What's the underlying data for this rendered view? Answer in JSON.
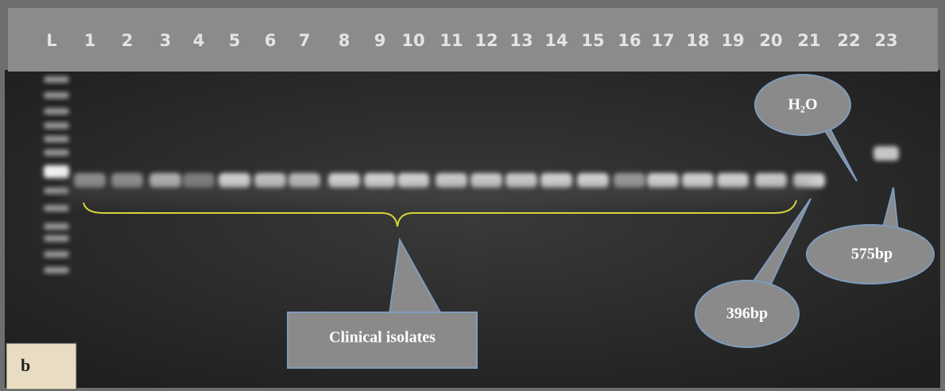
{
  "lane_labels": [
    "L",
    "1",
    "2",
    "3",
    "4",
    "5",
    "6",
    "7",
    "8",
    "9",
    "10",
    "11",
    "12",
    "13",
    "14",
    "15",
    "16",
    "17",
    "18",
    "19",
    "20",
    "21",
    "22",
    "23"
  ],
  "annotations": {
    "water": "H₂O",
    "band_575": "575bp",
    "band_396": "396bp",
    "isolates": "Clinical isolates"
  },
  "panel_label": "b"
}
